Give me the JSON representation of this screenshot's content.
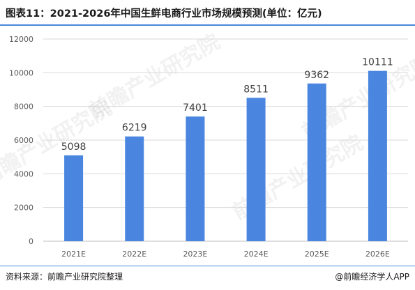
{
  "title": "图表11：2021-2026年中国生鲜电商行业市场规模预测(单位：亿元)",
  "source": "资料来源：前瞻产业研究院整理",
  "brand": "@前瞻经济学人APP",
  "watermark": "前瞻产业研究院",
  "colors": {
    "bar": "#4a86e0",
    "rule": "#4a88d8",
    "grid": "#d9d9d9",
    "axis": "#bfbfbf"
  },
  "chart_data": {
    "type": "bar",
    "categories": [
      "2021E",
      "2022E",
      "2023E",
      "2024E",
      "2025E",
      "2026E"
    ],
    "values": [
      5098,
      6219,
      7401,
      8511,
      9362,
      10111
    ],
    "yticks": [
      0,
      2000,
      4000,
      6000,
      8000,
      10000,
      12000
    ],
    "ylim": [
      0,
      12000
    ],
    "grid": true,
    "legend": "none"
  }
}
